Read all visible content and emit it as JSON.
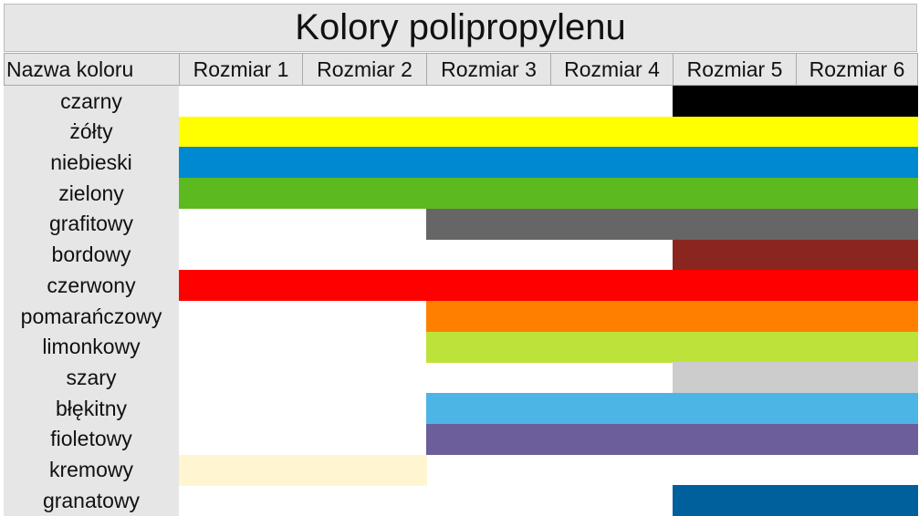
{
  "title": "Kolory polipropylenu",
  "table": {
    "headers": [
      "Nazwa koloru",
      "Rozmiar 1",
      "Rozmiar 2",
      "Rozmiar 3",
      "Rozmiar 4",
      "Rozmiar 5",
      "Rozmiar 6"
    ],
    "rows": [
      {
        "name": "czarny",
        "color": "#000000",
        "sizes": [
          false,
          false,
          false,
          false,
          true,
          true
        ]
      },
      {
        "name": "żółty",
        "color": "#ffff00",
        "sizes": [
          true,
          true,
          true,
          true,
          true,
          true
        ]
      },
      {
        "name": "niebieski",
        "color": "#0088d1",
        "sizes": [
          true,
          true,
          true,
          true,
          true,
          true
        ]
      },
      {
        "name": "zielony",
        "color": "#5db920",
        "sizes": [
          true,
          true,
          true,
          true,
          true,
          true
        ]
      },
      {
        "name": "grafitowy",
        "color": "#666666",
        "sizes": [
          false,
          false,
          true,
          true,
          true,
          true
        ]
      },
      {
        "name": "bordowy",
        "color": "#8b2520",
        "sizes": [
          false,
          false,
          false,
          false,
          true,
          true
        ]
      },
      {
        "name": "czerwony",
        "color": "#ff0000",
        "sizes": [
          true,
          true,
          true,
          true,
          true,
          true
        ]
      },
      {
        "name": "pomarańczowy",
        "color": "#ff7f00",
        "sizes": [
          false,
          false,
          true,
          true,
          true,
          true
        ]
      },
      {
        "name": "limonkowy",
        "color": "#bde33a",
        "sizes": [
          false,
          false,
          true,
          true,
          true,
          true
        ]
      },
      {
        "name": "szary",
        "color": "#cccccc",
        "sizes": [
          false,
          false,
          false,
          false,
          true,
          true
        ]
      },
      {
        "name": "błękitny",
        "color": "#4db5e6",
        "sizes": [
          false,
          false,
          true,
          true,
          true,
          true
        ]
      },
      {
        "name": "fioletowy",
        "color": "#6b5e9b",
        "sizes": [
          false,
          false,
          true,
          true,
          true,
          true
        ]
      },
      {
        "name": "kremowy",
        "color": "#fff5d0",
        "sizes": [
          true,
          true,
          false,
          false,
          false,
          false
        ]
      },
      {
        "name": "granatowy",
        "color": "#00609c",
        "sizes": [
          false,
          false,
          false,
          false,
          true,
          true
        ]
      }
    ]
  }
}
